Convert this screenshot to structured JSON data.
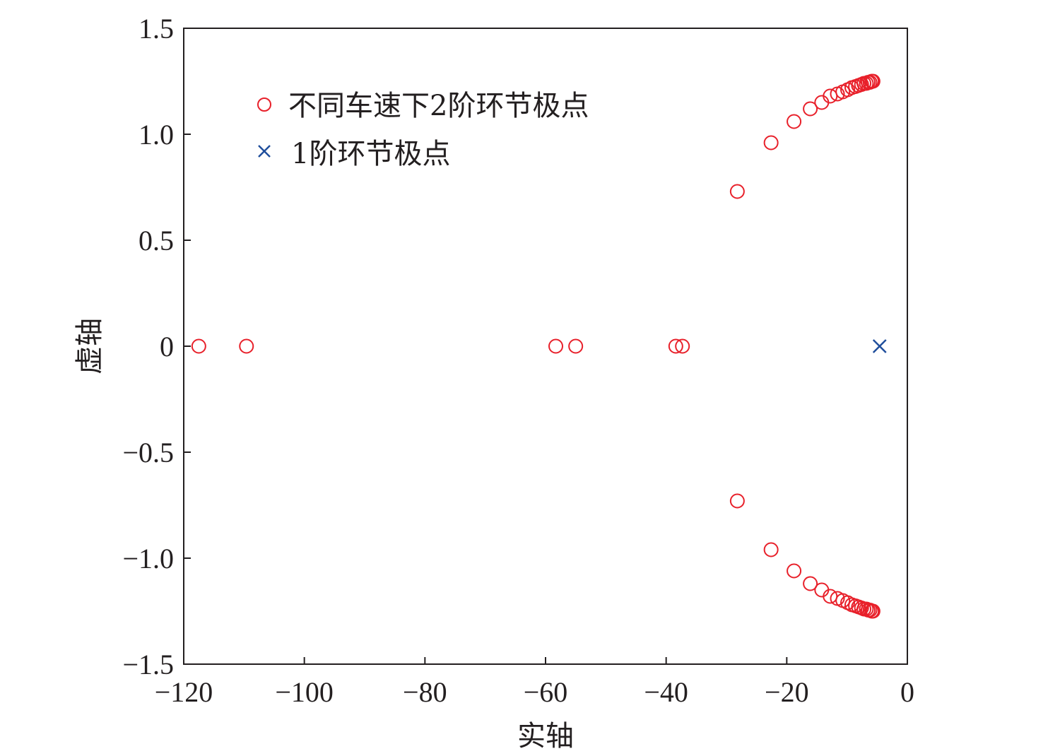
{
  "chart_data": {
    "type": "scatter",
    "xlabel": "实轴",
    "ylabel": "虚轴",
    "xlim": [
      -120,
      0
    ],
    "ylim": [
      -1.5,
      1.5
    ],
    "x_ticks": [
      -120,
      -100,
      -80,
      -60,
      -40,
      -20,
      0
    ],
    "x_tick_labels": [
      "−120",
      "−100",
      "−80",
      "−60",
      "−40",
      "−20",
      "0"
    ],
    "y_ticks": [
      1.5,
      1.0,
      0.5,
      0,
      -0.5,
      -1.0,
      -1.5
    ],
    "y_tick_labels": [
      "1.5",
      "1.0",
      "0.5",
      "0",
      "−0.5",
      "−1.0",
      "−1.5"
    ],
    "grid": false,
    "legend_position": "top-left",
    "series": [
      {
        "name": "不同车速下2阶环节极点",
        "marker": "circle",
        "color": "#e8202a",
        "points": [
          [
            -117.5,
            0
          ],
          [
            -109.6,
            0
          ],
          [
            -58.3,
            0
          ],
          [
            -55.0,
            0
          ],
          [
            -38.4,
            0
          ],
          [
            -37.3,
            0
          ],
          [
            -28.2,
            0.73
          ],
          [
            -22.6,
            0.96
          ],
          [
            -18.8,
            1.06
          ],
          [
            -16.1,
            1.12
          ],
          [
            -14.2,
            1.15
          ],
          [
            -12.8,
            1.18
          ],
          [
            -11.6,
            1.19
          ],
          [
            -10.7,
            1.2
          ],
          [
            -9.9,
            1.21
          ],
          [
            -9.2,
            1.22
          ],
          [
            -8.6,
            1.225
          ],
          [
            -8.1,
            1.23
          ],
          [
            -7.6,
            1.235
          ],
          [
            -7.2,
            1.24
          ],
          [
            -6.8,
            1.24
          ],
          [
            -6.5,
            1.245
          ],
          [
            -6.2,
            1.245
          ],
          [
            -5.9,
            1.25
          ],
          [
            -5.7,
            1.25
          ],
          [
            -28.2,
            -0.73
          ],
          [
            -22.6,
            -0.96
          ],
          [
            -18.8,
            -1.06
          ],
          [
            -16.1,
            -1.12
          ],
          [
            -14.2,
            -1.15
          ],
          [
            -12.8,
            -1.18
          ],
          [
            -11.6,
            -1.19
          ],
          [
            -10.7,
            -1.2
          ],
          [
            -9.9,
            -1.21
          ],
          [
            -9.2,
            -1.22
          ],
          [
            -8.6,
            -1.225
          ],
          [
            -8.1,
            -1.23
          ],
          [
            -7.6,
            -1.235
          ],
          [
            -7.2,
            -1.24
          ],
          [
            -6.8,
            -1.24
          ],
          [
            -6.5,
            -1.245
          ],
          [
            -6.2,
            -1.245
          ],
          [
            -5.9,
            -1.25
          ],
          [
            -5.7,
            -1.25
          ]
        ]
      },
      {
        "name": "1阶环节极点",
        "marker": "x",
        "color": "#1f4e9c",
        "points": [
          [
            -4.6,
            0
          ]
        ]
      }
    ]
  }
}
